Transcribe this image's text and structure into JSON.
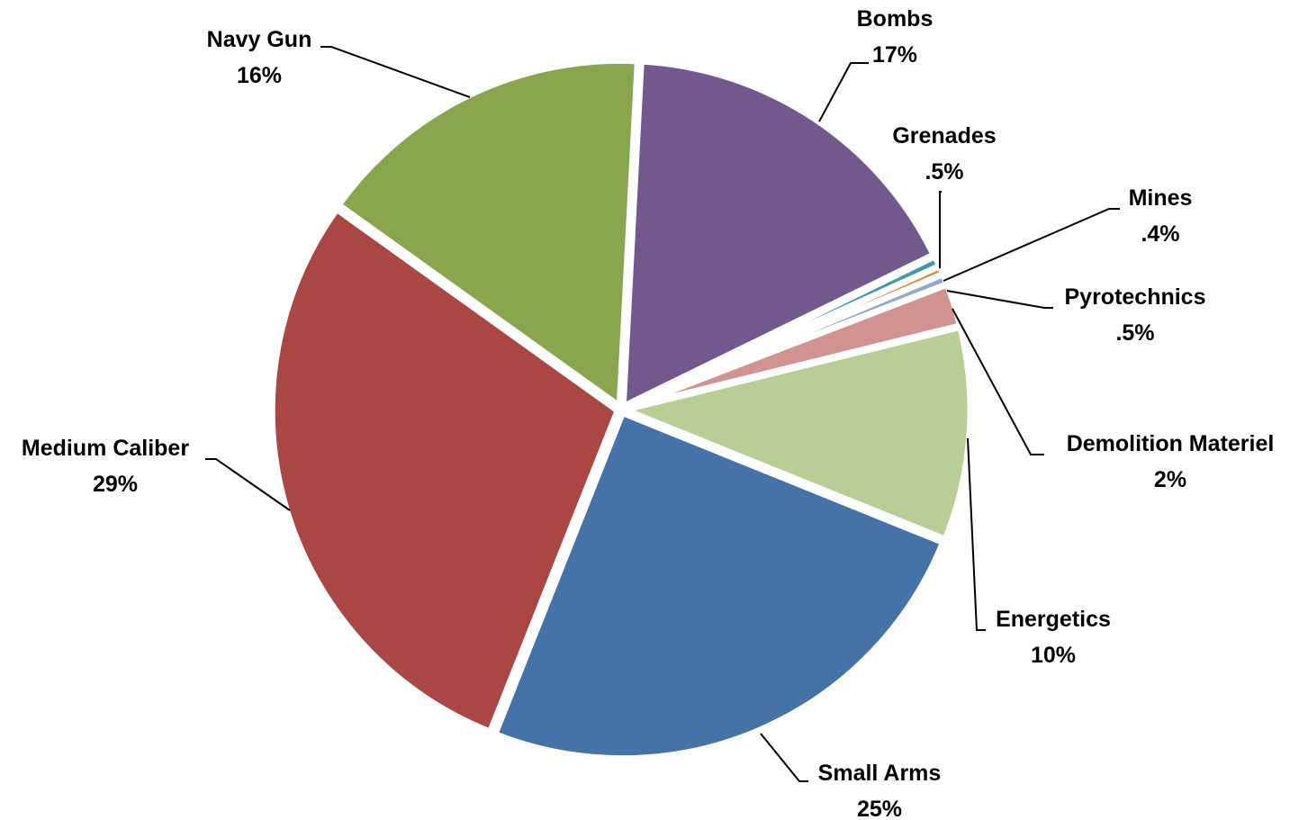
{
  "chart_data": {
    "type": "pie",
    "title": "",
    "slices": [
      {
        "name": "Bombs",
        "label": "17%",
        "value": 17,
        "color": "#71588F"
      },
      {
        "name": "Grenades",
        "label": ".5%",
        "value": 0.5,
        "color": "#4198AF"
      },
      {
        "name": "Mines",
        "label": ".4%",
        "value": 0.4,
        "color": "#DB843D"
      },
      {
        "name": "Pyrotechnics",
        "label": ".5%",
        "value": 0.5,
        "color": "#93A9CF"
      },
      {
        "name": "Demolition Materiel",
        "label": "2%",
        "value": 2,
        "color": "#D19392"
      },
      {
        "name": "Energetics",
        "label": "10%",
        "value": 10,
        "color": "#B9CD96"
      },
      {
        "name": "Small Arms",
        "label": "25%",
        "value": 25,
        "color": "#4572A7"
      },
      {
        "name": "Medium Caliber",
        "label": "29%",
        "value": 29,
        "color": "#AA4643"
      },
      {
        "name": "Navy Gun",
        "label": "16%",
        "value": 16,
        "color": "#89A54E"
      }
    ],
    "legend": "none",
    "data_labels": "outside-with-leader-lines"
  }
}
